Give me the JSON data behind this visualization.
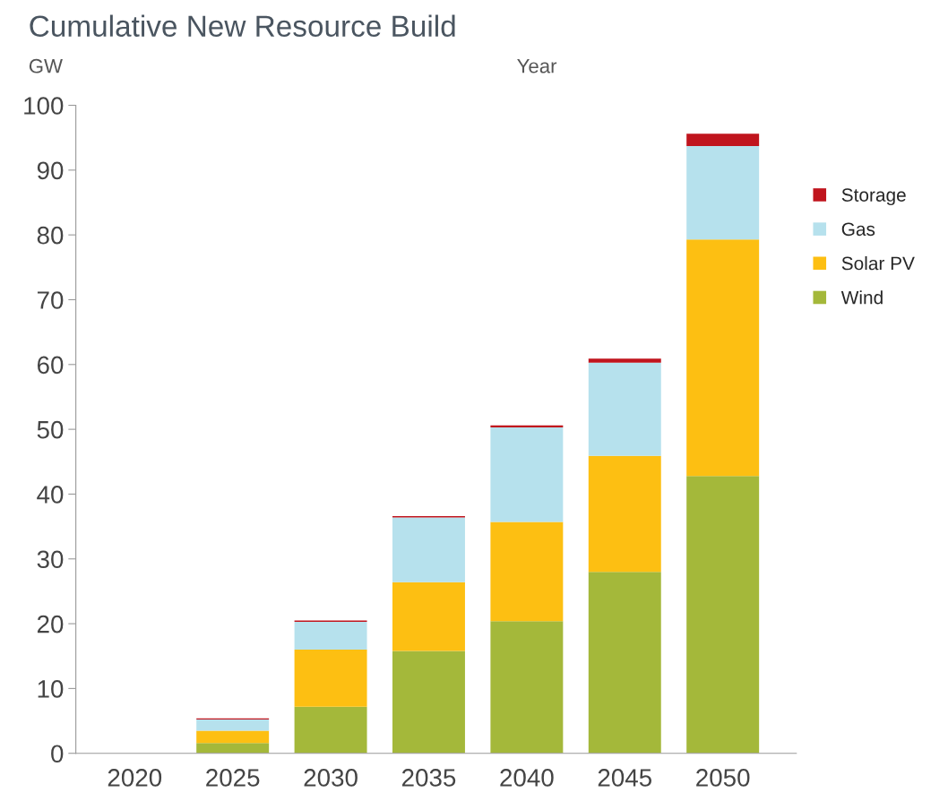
{
  "chart_data": {
    "type": "bar",
    "title": "Cumulative New Resource Build",
    "ylabel": "GW",
    "xlabel": "Year",
    "categories": [
      "2020",
      "2025",
      "2030",
      "2035",
      "2040",
      "2045",
      "2050"
    ],
    "stacked": true,
    "series": [
      {
        "name": "Wind",
        "color": "#a4b83a",
        "values": [
          0,
          1.6,
          7.2,
          15.8,
          20.4,
          28.0,
          42.8
        ]
      },
      {
        "name": "Solar PV",
        "color": "#fdbf12",
        "values": [
          0,
          1.9,
          8.8,
          10.6,
          15.3,
          17.9,
          36.5
        ]
      },
      {
        "name": "Gas",
        "color": "#b6e1ed",
        "values": [
          0,
          1.7,
          4.3,
          10.0,
          14.6,
          14.4,
          14.4
        ]
      },
      {
        "name": "Storage",
        "color": "#c0141d",
        "values": [
          0,
          0.2,
          0.2,
          0.2,
          0.3,
          0.6,
          1.9
        ]
      }
    ],
    "ylim": [
      0,
      100
    ],
    "yticks": [
      0,
      10,
      20,
      30,
      40,
      50,
      60,
      70,
      80,
      90,
      100
    ],
    "grid": false,
    "legend": "right"
  }
}
